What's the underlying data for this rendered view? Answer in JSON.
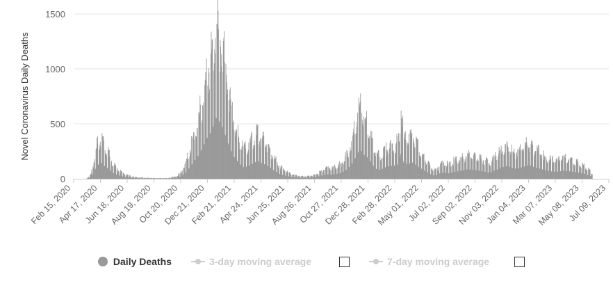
{
  "chart_data": {
    "type": "bar",
    "title": "",
    "xlabel": "",
    "ylabel": "Novel Coronavirus Daily Deaths",
    "ylim": [
      0,
      1500
    ],
    "y_ticks": [
      "0",
      "500",
      "1000",
      "1500"
    ],
    "x_tick_labels": [
      "Feb 15, 2020",
      "Apr 17, 2020",
      "Jun 18, 2020",
      "Aug 19, 2020",
      "Oct 20, 2020",
      "Dec 21, 2020",
      "Feb 21, 2021",
      "Apr 24, 2021",
      "Jun 25, 2021",
      "Aug 26, 2021",
      "Oct 27, 2021",
      "Dec 28, 2021",
      "Feb 28, 2022",
      "May 01, 2022",
      "Jul 02, 2022",
      "Sep 02, 2022",
      "Nov 03, 2022",
      "Jan 04, 2023",
      "Mar 07, 2023",
      "May 08, 2023",
      "Jul 09, 2023"
    ],
    "grid": true,
    "bar_color": "#999999",
    "x_start": "Feb 15, 2020",
    "x_end": "Jul 09, 2023",
    "series": [
      {
        "name": "Daily Deaths",
        "visible": true,
        "points": [
          [
            "Feb 15, 2020",
            0
          ],
          [
            "Mar 15, 2020",
            0
          ],
          [
            "Mar 25, 2020",
            30
          ],
          [
            "Apr 01, 2020",
            130
          ],
          [
            "Apr 08, 2020",
            260
          ],
          [
            "Apr 17, 2020",
            330
          ],
          [
            "Apr 25, 2020",
            260
          ],
          [
            "May 05, 2020",
            200
          ],
          [
            "May 15, 2020",
            120
          ],
          [
            "May 28, 2020",
            70
          ],
          [
            "Jun 10, 2020",
            40
          ],
          [
            "Jun 25, 2020",
            20
          ],
          [
            "Jul 15, 2020",
            10
          ],
          [
            "Aug 19, 2020",
            5
          ],
          [
            "Sep 20, 2020",
            5
          ],
          [
            "Oct 10, 2020",
            20
          ],
          [
            "Oct 20, 2020",
            50
          ],
          [
            "Nov 01, 2020",
            130
          ],
          [
            "Nov 15, 2020",
            300
          ],
          [
            "Nov 28, 2020",
            450
          ],
          [
            "Dec 10, 2020",
            650
          ],
          [
            "Dec 21, 2020",
            850
          ],
          [
            "Jan 01, 2021",
            1000
          ],
          [
            "Jan 08, 2021",
            1240
          ],
          [
            "Jan 15, 2021",
            1180
          ],
          [
            "Jan 22, 2021",
            1080
          ],
          [
            "Feb 01, 2021",
            850
          ],
          [
            "Feb 10, 2021",
            620
          ],
          [
            "Feb 21, 2021",
            430
          ],
          [
            "Mar 05, 2021",
            300
          ],
          [
            "Mar 15, 2021",
            230
          ],
          [
            "Mar 25, 2021",
            260
          ],
          [
            "Apr 05, 2021",
            310
          ],
          [
            "Apr 15, 2021",
            360
          ],
          [
            "Apr 24, 2021",
            320
          ],
          [
            "May 05, 2021",
            280
          ],
          [
            "May 15, 2021",
            220
          ],
          [
            "May 25, 2021",
            160
          ],
          [
            "Jun 05, 2021",
            100
          ],
          [
            "Jun 25, 2021",
            50
          ],
          [
            "Jul 10, 2021",
            30
          ],
          [
            "Jul 25, 2021",
            20
          ],
          [
            "Aug 10, 2021",
            20
          ],
          [
            "Aug 26, 2021",
            30
          ],
          [
            "Sep 10, 2021",
            60
          ],
          [
            "Sep 25, 2021",
            90
          ],
          [
            "Oct 05, 2021",
            80
          ],
          [
            "Oct 15, 2021",
            100
          ],
          [
            "Oct 27, 2021",
            120
          ],
          [
            "Nov 10, 2021",
            200
          ],
          [
            "Nov 20, 2021",
            300
          ],
          [
            "Nov 28, 2021",
            420
          ],
          [
            "Dec 05, 2021",
            550
          ],
          [
            "Dec 12, 2021",
            560
          ],
          [
            "Dec 20, 2021",
            460
          ],
          [
            "Dec 28, 2021",
            420
          ],
          [
            "Jan 05, 2022",
            300
          ],
          [
            "Jan 15, 2022",
            200
          ],
          [
            "Jan 25, 2022",
            180
          ],
          [
            "Feb 05, 2022",
            230
          ],
          [
            "Feb 15, 2022",
            260
          ],
          [
            "Feb 28, 2022",
            270
          ],
          [
            "Mar 10, 2022",
            300
          ],
          [
            "Mar 14, 2022",
            570
          ],
          [
            "Mar 20, 2022",
            310
          ],
          [
            "Apr 01, 2022",
            300
          ],
          [
            "Apr 10, 2022",
            330
          ],
          [
            "Apr 20, 2022",
            260
          ],
          [
            "May 01, 2022",
            200
          ],
          [
            "May 10, 2022",
            150
          ],
          [
            "May 20, 2022",
            100
          ],
          [
            "May 28, 2022",
            70
          ],
          [
            "Jun 05, 2022",
            70
          ],
          [
            "Jun 15, 2022",
            130
          ],
          [
            "Jul 02, 2022",
            110
          ],
          [
            "Jul 15, 2022",
            140
          ],
          [
            "Aug 01, 2022",
            160
          ],
          [
            "Aug 15, 2022",
            190
          ],
          [
            "Sep 02, 2022",
            180
          ],
          [
            "Sep 20, 2022",
            150
          ],
          [
            "Oct 05, 2022",
            120
          ],
          [
            "Oct 20, 2022",
            180
          ],
          [
            "Nov 03, 2022",
            230
          ],
          [
            "Nov 15, 2022",
            260
          ],
          [
            "Dec 01, 2022",
            200
          ],
          [
            "Dec 15, 2022",
            220
          ],
          [
            "Jan 04, 2023",
            280
          ],
          [
            "Jan 15, 2023",
            240
          ],
          [
            "Feb 01, 2023",
            200
          ],
          [
            "Feb 15, 2023",
            160
          ],
          [
            "Mar 07, 2023",
            140
          ],
          [
            "Mar 25, 2023",
            160
          ],
          [
            "Apr 10, 2023",
            150
          ],
          [
            "Apr 25, 2023",
            130
          ],
          [
            "May 08, 2023",
            110
          ],
          [
            "May 20, 2023",
            80
          ],
          [
            "May 31, 2023",
            40
          ],
          [
            "Jun 01, 2023",
            0
          ]
        ]
      },
      {
        "name": "3-day moving average",
        "visible": false
      },
      {
        "name": "7-day moving average",
        "visible": false
      }
    ]
  },
  "legend": {
    "daily_label": "Daily Deaths",
    "ma3_label": "3-day moving average",
    "ma7_label": "7-day moving average"
  }
}
